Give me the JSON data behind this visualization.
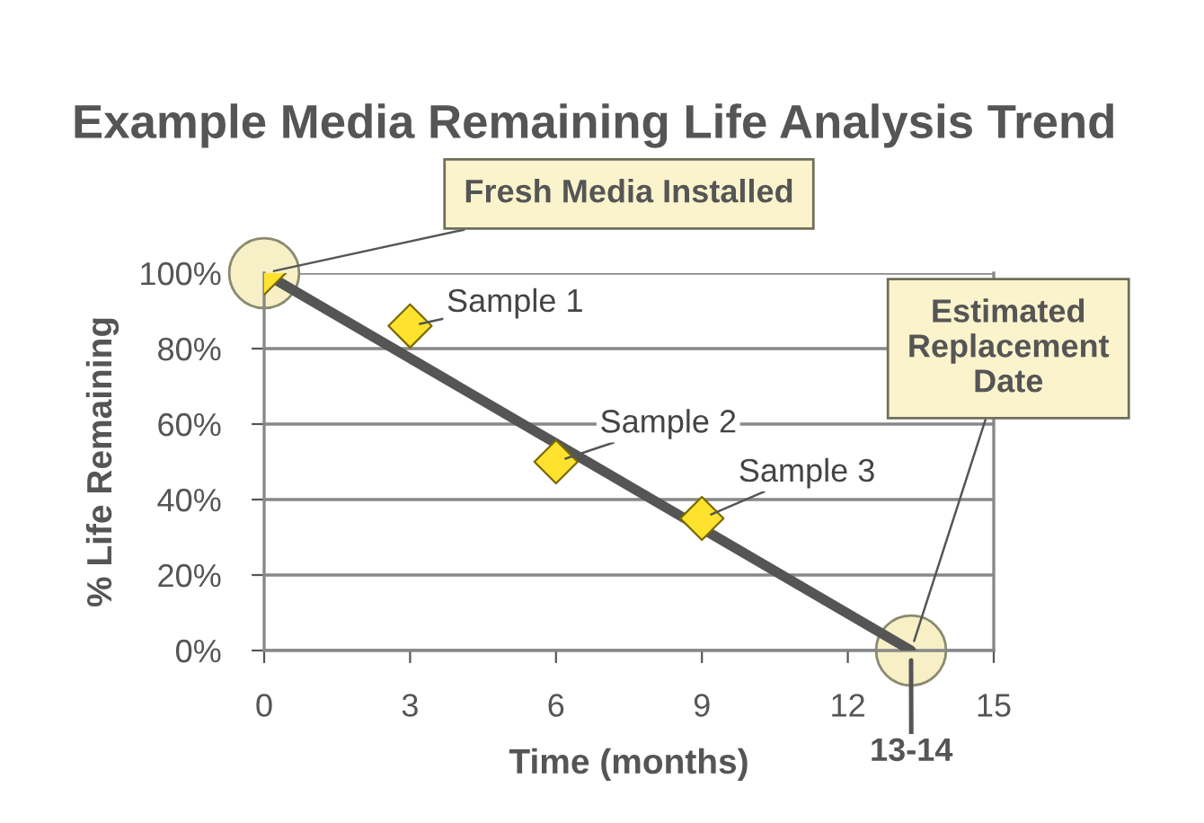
{
  "chart_data": {
    "type": "scatter",
    "title": "Example Media Remaining Life Analysis Trend",
    "xlabel": "Time (months)",
    "ylabel": "% Life Remaining",
    "series": [
      {
        "color": "#ffe22e",
        "x": [
          0,
          3,
          6,
          9
        ],
        "values": [
          100,
          86,
          50,
          35
        ],
        "marker": "diamond"
      },
      {
        "type": "line",
        "color": "#555555",
        "x": [
          0,
          13.3
        ],
        "values": [
          100,
          0
        ],
        "marker": "circle"
      }
    ],
    "xlim": [
      0,
      15
    ],
    "xticks": [
      0,
      3,
      6,
      9,
      12,
      15
    ],
    "ylim": [
      0,
      100
    ],
    "yticks": [
      {
        "value": 0,
        "label": "0%"
      },
      {
        "value": 20,
        "label": "20%"
      },
      {
        "value": 40,
        "label": "40%"
      },
      {
        "value": 60,
        "label": "60%"
      },
      {
        "value": 80,
        "label": "80%"
      },
      {
        "value": 100,
        "label": "100%"
      }
    ],
    "grid": "y",
    "legend": false,
    "annotations": [
      {
        "text": "Fresh Media Installed",
        "x": 0,
        "y": 100
      },
      {
        "text": "Sample 1",
        "x": 3,
        "y": 86
      },
      {
        "text": "Sample 2",
        "x": 6,
        "y": 50
      },
      {
        "text": "Sample 3",
        "x": 9,
        "y": 35
      },
      {
        "text": "Estimated\nReplacement\nDate",
        "x": 13.3,
        "y": 0
      },
      {
        "text": "13-14",
        "x": 13.3,
        "y": 0
      }
    ]
  }
}
